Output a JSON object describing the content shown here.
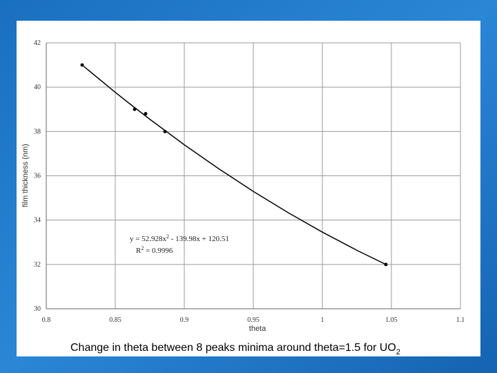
{
  "chart_data": {
    "type": "scatter",
    "xlabel": "theta",
    "ylabel": "film thickness (nm)",
    "xlim": [
      0.8,
      1.1
    ],
    "xticks": [
      0.8,
      0.85,
      0.9,
      0.95,
      1,
      1.05,
      1.1
    ],
    "ylim": [
      30,
      42
    ],
    "yticks": [
      30,
      32,
      34,
      36,
      38,
      40,
      42
    ],
    "grid": true,
    "series": [
      {
        "style": "markers",
        "color": "#000000",
        "x": [
          0.826,
          0.864,
          0.872,
          0.886,
          1.046
        ],
        "values": [
          41.0,
          39.0,
          38.8,
          38.0,
          32.0
        ]
      },
      {
        "style": "line",
        "color": "#000000",
        "x": [
          0.827,
          0.85,
          0.86,
          0.875,
          0.9,
          0.925,
          0.95,
          0.975,
          1.0,
          1.025,
          1.046
        ],
        "values": [
          40.946,
          39.767,
          39.273,
          38.551,
          37.4,
          36.316,
          35.296,
          34.345,
          33.458,
          32.638,
          32.0
        ]
      }
    ],
    "equation": {
      "base": "y = 52.928x",
      "power": "2",
      "rest": " - 139.98x + 120.51"
    },
    "r_squared": {
      "base": "R",
      "power": "2",
      "rest": " = 0.9996"
    }
  },
  "caption": {
    "text": "Change in theta between 8 peaks minima around theta=1.5 for UO",
    "subscript": "2"
  }
}
